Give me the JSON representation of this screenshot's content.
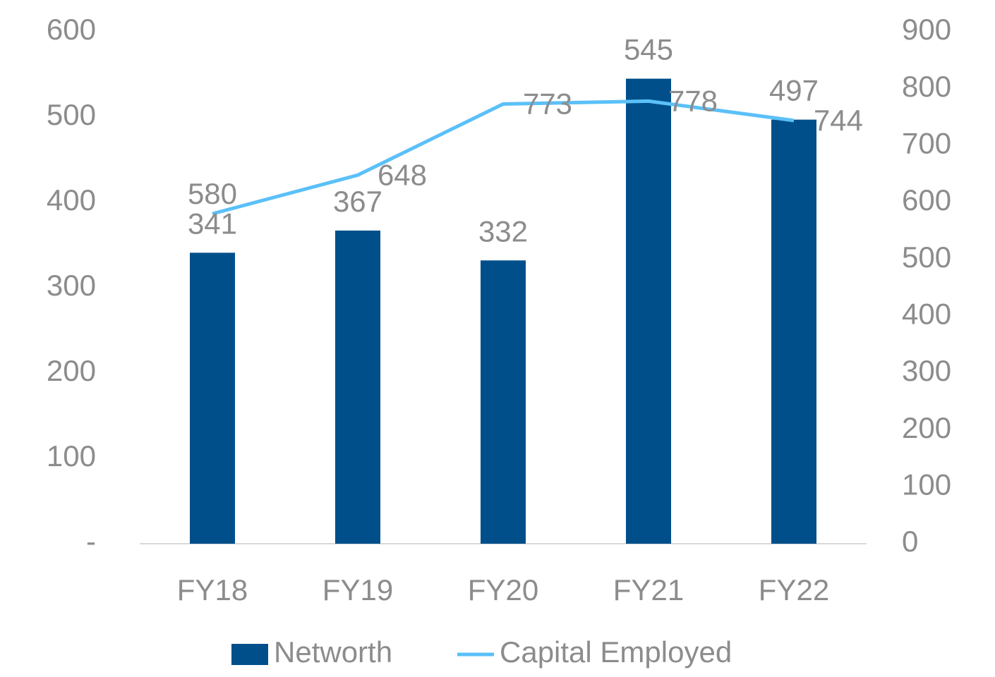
{
  "chart_data": {
    "type": "bar_line",
    "categories": [
      "FY18",
      "FY19",
      "FY20",
      "FY21",
      "FY22"
    ],
    "series": [
      {
        "name": "Networth",
        "color": "#004f8b",
        "type": "bar",
        "values": [
          341,
          367,
          332,
          545,
          497
        ]
      },
      {
        "name": "Capital Employed",
        "color": "#5bc0f8",
        "type": "line",
        "axis": "y2",
        "values": [
          580,
          648,
          773,
          778,
          744
        ]
      }
    ],
    "ylim": [
      0,
      600
    ],
    "yticks": [
      {
        "value": 0,
        "label": "-"
      },
      100,
      200,
      300,
      400,
      500,
      600
    ],
    "y2lim": [
      0,
      900
    ],
    "y2ticks": [
      0,
      100,
      200,
      300,
      400,
      500,
      600,
      700,
      800,
      900
    ],
    "legend": "bottom"
  }
}
